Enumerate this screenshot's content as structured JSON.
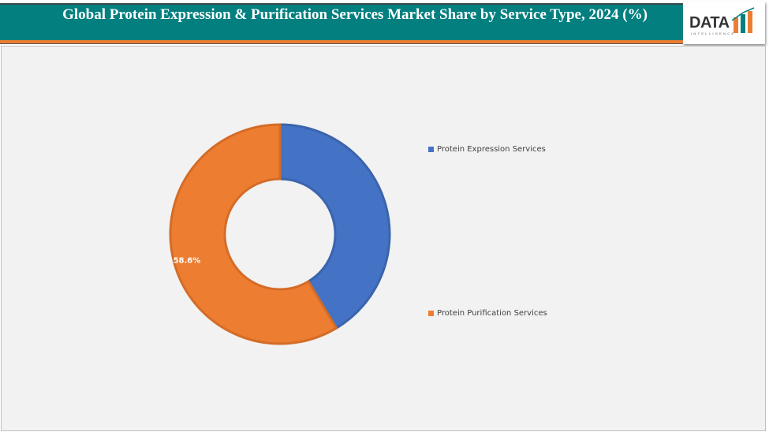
{
  "header": {
    "title": "Global Protein Expression & Purification Services Market Share by Service Type, 2024 (%)"
  },
  "logo": {
    "text": "DATA",
    "sub": "INTELLIGENCE"
  },
  "chart_data": {
    "type": "pie",
    "variant": "donut",
    "title": "Global Protein Expression & Purification Services Market Share by Service Type, 2024 (%)",
    "categories": [
      "Protein Expression Services",
      "Protein Purification Services"
    ],
    "values": [
      41.4,
      58.6
    ],
    "data_labels": [
      "",
      "58.6%"
    ],
    "colors": [
      "#4472c4",
      "#ed7d31"
    ],
    "legend_position": "right"
  }
}
